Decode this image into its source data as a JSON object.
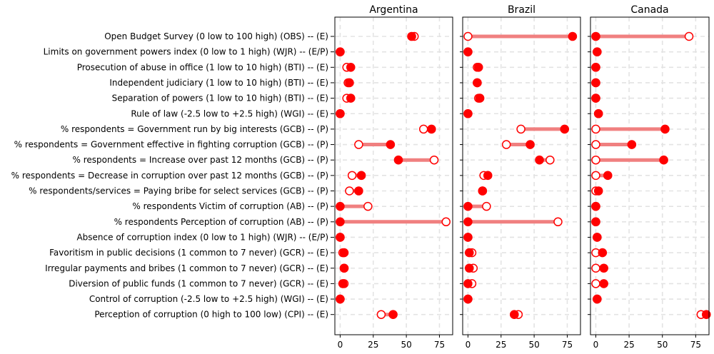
{
  "chart_data": {
    "type": "dumbbell",
    "grid": true,
    "xticks": [
      "0",
      "25",
      "50",
      "75"
    ],
    "xlim": [
      -4,
      85
    ],
    "colors": {
      "line": "#f08080",
      "filled": "#ff0000",
      "hollow_edge": "#ff0000",
      "hollow_fill": "#ffffff"
    },
    "categories": [
      "Open Budget Survey (0 low to 100 high) (OBS)  -- (E)",
      "Limits on government powers index (0 low to 1 high) (WJR) -- (E/P)",
      "Prosecution of abuse in office (1 low to 10 high) (BTI)  -- (E)",
      "Independent judiciary (1 low to 10 high) (BTI)  -- (E)",
      "Separation of powers (1 low to 10 high) (BTI)  -- (E)",
      "Rule of law (-2.5 low to +2.5 high) (WGI)  -- (E)",
      "% respondents = Government run by big interests (GCB)  -- (P)",
      "% respondents = Government effective in fighting corruption (GCB)  -- (P)",
      "% respondents = Increase over past 12 months (GCB)  -- (P)",
      "% respondents = Decrease in corruption over past 12 months  (GCB)  -- (P)",
      "% respondents/services = Paying bribe for select services (GCB)  -- (P)",
      "% respondents Victim of corruption (AB)  -- (P)",
      "% respondents Perception of  corruption (AB)  -- (P)",
      "Absence of corruption index (0 low to 1 high) (WJR) -- (E/P)",
      "Favoritism in public decisions (1 common to 7 never) (GCR)  --  (E)",
      "Irregular payments and bribes (1 common to 7 never) (GCR)  -- (E)",
      "Diversion of public funds (1 common to 7 never)  (GCR)  -- (E)",
      "Control of corruption (-2.5 low to +2.5 high) (WGI) -- (E)",
      "Perception of corruption (0 high to 100 low) (CPI) -- (E)"
    ],
    "panels": [
      {
        "title": "Argentina",
        "hollow": [
          56,
          0,
          5,
          6,
          5,
          0,
          63,
          14,
          71,
          9,
          7,
          21,
          80,
          0,
          2,
          3,
          3,
          0,
          31
        ],
        "filled": [
          54,
          0,
          8,
          7,
          8,
          0,
          69,
          38,
          44,
          16,
          14,
          0,
          0,
          0,
          3,
          3,
          2,
          0,
          40
        ]
      },
      {
        "title": "Brazil",
        "hollow": [
          0,
          0,
          7,
          7,
          8,
          0,
          40,
          29,
          62,
          12,
          11,
          14,
          68,
          0,
          3,
          4,
          3,
          0,
          38
        ],
        "filled": [
          79,
          0,
          8,
          7,
          9,
          0,
          73,
          47,
          54,
          15,
          11,
          0,
          0,
          0,
          1,
          1,
          0,
          0,
          35
        ]
      },
      {
        "title": "Canada",
        "hollow": [
          70,
          1,
          0,
          0,
          0,
          2,
          0,
          0,
          0,
          0,
          0,
          0,
          0,
          1,
          0,
          0,
          0,
          1,
          79
        ],
        "filled": [
          0,
          1,
          0,
          0,
          0,
          2,
          52,
          27,
          51,
          9,
          2,
          0,
          0,
          1,
          5,
          6,
          6,
          1,
          83
        ]
      }
    ]
  }
}
